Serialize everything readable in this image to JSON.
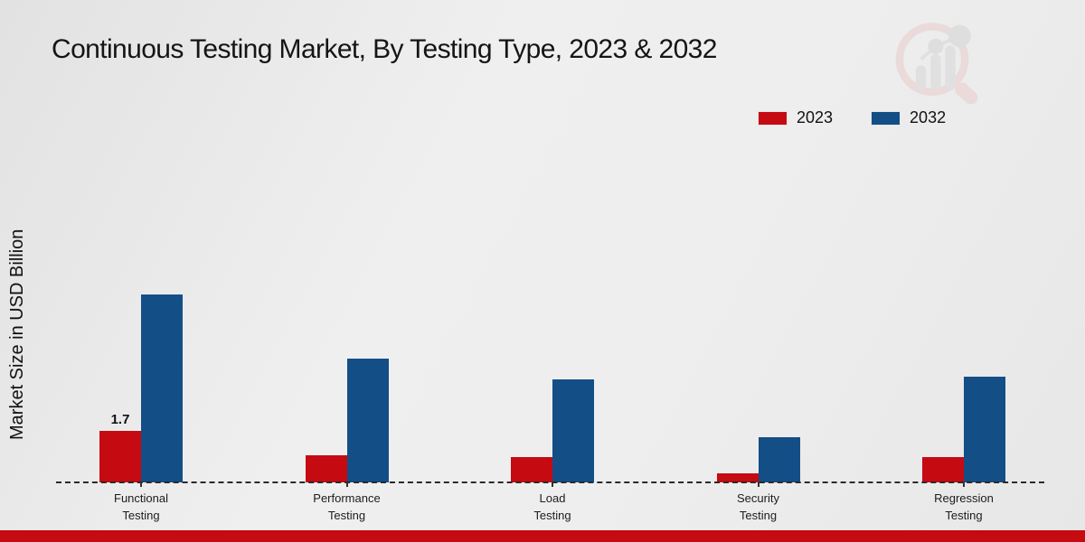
{
  "title": "Continuous Testing Market, By Testing Type, 2023 & 2032",
  "y_axis_label": "Market Size in USD Billion",
  "colors": {
    "series_2023": "#c50a11",
    "series_2032": "#134e87",
    "footer_bar": "#c50a11",
    "baseline": "#2a2a2a"
  },
  "legend": {
    "items": [
      {
        "label": "2023",
        "color": "#c50a11"
      },
      {
        "label": "2032",
        "color": "#134e87"
      }
    ]
  },
  "watermark": {
    "name": "market-research-future-logo"
  },
  "chart_data": {
    "type": "bar",
    "categories": [
      "Functional Testing",
      "Performance Testing",
      "Load Testing",
      "Security Testing",
      "Regression Testing"
    ],
    "series": [
      {
        "name": "2023",
        "color": "#c50a11",
        "values": [
          1.7,
          0.9,
          0.85,
          0.3,
          0.85
        ]
      },
      {
        "name": "2032",
        "color": "#134e87",
        "values": [
          6.2,
          4.1,
          3.4,
          1.5,
          3.5
        ]
      }
    ],
    "title": "Continuous Testing Market, By Testing Type, 2023 & 2032",
    "xlabel": "",
    "ylabel": "Market Size in USD Billion",
    "ylim": [
      0,
      7
    ],
    "grid": false,
    "legend_position": "top-right",
    "annotations": [
      {
        "series_index": 0,
        "category_index": 0,
        "text": "1.7"
      }
    ]
  }
}
